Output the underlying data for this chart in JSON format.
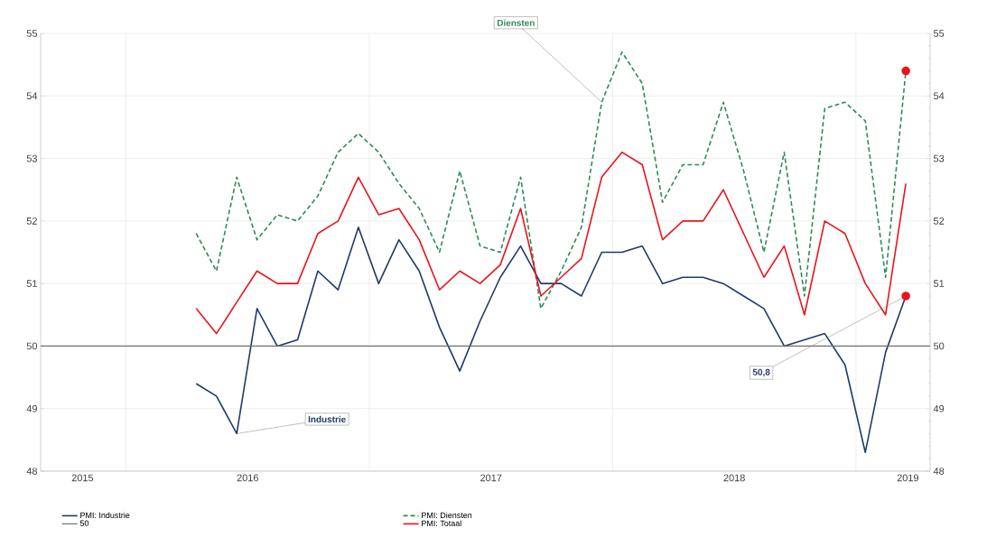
{
  "chart_data": {
    "type": "line",
    "x": [
      "2016-04-15",
      "2016-05-15",
      "2016-06-15",
      "2016-07-15",
      "2016-08-15",
      "2016-09-15",
      "2016-10-15",
      "2016-11-15",
      "2016-12-15",
      "2017-01-15",
      "2017-02-15",
      "2017-03-15",
      "2017-04-15",
      "2017-05-15",
      "2017-06-15",
      "2017-07-15",
      "2017-08-15",
      "2017-09-15",
      "2017-10-15",
      "2017-11-15",
      "2017-12-15",
      "2018-01-15",
      "2018-02-15",
      "2018-03-15",
      "2018-04-15",
      "2018-05-15",
      "2018-06-15",
      "2018-07-15",
      "2018-08-15",
      "2018-09-15",
      "2018-10-15",
      "2018-11-15",
      "2018-12-15",
      "2019-01-15",
      "2019-02-15",
      "2019-03-15"
    ],
    "series": [
      {
        "name": "PMI: Industrie",
        "color": "#1f3a68",
        "line_style": "solid",
        "values": [
          49.4,
          49.2,
          48.6,
          50.6,
          50.0,
          50.1,
          51.2,
          50.9,
          51.9,
          51.0,
          51.7,
          51.2,
          50.3,
          49.6,
          50.4,
          51.1,
          51.6,
          51.0,
          51.0,
          50.8,
          51.5,
          51.5,
          51.6,
          51.0,
          51.1,
          51.1,
          51.0,
          50.8,
          50.6,
          50.0,
          50.1,
          50.2,
          49.7,
          48.3,
          49.9,
          50.8
        ],
        "value_labels": [
          null,
          null,
          null,
          null,
          null,
          null,
          null,
          null,
          null,
          null,
          null,
          null,
          null,
          null,
          null,
          null,
          null,
          null,
          null,
          null,
          null,
          null,
          null,
          null,
          null,
          null,
          null,
          null,
          null,
          null,
          null,
          null,
          null,
          null,
          null,
          "50,8"
        ]
      },
      {
        "name": "PMI: Diensten",
        "color": "#2e8b57",
        "line_style": "dashed",
        "values": [
          51.8,
          51.2,
          52.7,
          51.7,
          52.1,
          52.0,
          52.4,
          53.1,
          53.4,
          53.1,
          52.6,
          52.2,
          51.5,
          52.8,
          51.6,
          51.5,
          52.7,
          50.6,
          51.2,
          51.9,
          53.9,
          54.7,
          54.2,
          52.3,
          52.9,
          52.9,
          53.9,
          52.8,
          51.5,
          53.1,
          50.8,
          53.8,
          53.9,
          53.6,
          51.1,
          54.4
        ]
      },
      {
        "name": "PMI: Totaal",
        "color": "#e8141c",
        "line_style": "solid",
        "values": [
          50.6,
          50.2,
          50.7,
          51.2,
          51.0,
          51.0,
          51.8,
          52.0,
          52.7,
          52.1,
          52.2,
          51.7,
          50.9,
          51.2,
          51.0,
          51.3,
          52.2,
          50.8,
          51.1,
          51.4,
          52.7,
          53.1,
          52.9,
          51.7,
          52.0,
          52.0,
          52.5,
          51.8,
          51.1,
          51.6,
          50.5,
          52.0,
          51.8,
          51.0,
          50.5,
          52.6
        ]
      },
      {
        "type": "scatter",
        "marker": "circle",
        "color": "#e8141c",
        "x": [
          "2019-03-15",
          "2019-03-15"
        ],
        "values": [
          54.4,
          50.8
        ]
      }
    ],
    "xlim": [
      "2015-08-25",
      "2019-04-21"
    ],
    "xticks": [
      {
        "value": "2015-10-27",
        "label": "2015"
      },
      {
        "value": "2016-01-01",
        "label": null
      },
      {
        "value": "2016-07-01",
        "label": "2016"
      },
      {
        "value": "2017-01-01",
        "label": null
      },
      {
        "value": "2017-07-01",
        "label": "2017"
      },
      {
        "value": "2018-01-01",
        "label": null
      },
      {
        "value": "2018-07-01",
        "label": "2018"
      },
      {
        "value": "2019-01-01",
        "label": null
      },
      {
        "value": "2019-03-18",
        "label": "2019"
      }
    ],
    "ylim": [
      48,
      55
    ],
    "yticks": [
      48,
      49,
      50,
      51,
      52,
      53,
      54,
      55
    ],
    "y2lim": [
      48,
      55
    ],
    "y2ticks": [
      48,
      49,
      50,
      51,
      52,
      53,
      54,
      55
    ],
    "ref_lines": [
      {
        "axis": "y",
        "value": 50,
        "label": "50",
        "color": "#707070"
      }
    ],
    "annotations": [
      {
        "text": "Diensten",
        "x": "2017-12-15",
        "y": 53.9
      },
      {
        "text": "Industrie",
        "x": "2016-06-15",
        "y": 48.6
      }
    ],
    "grid": true,
    "legend": "bottom",
    "marker": "none"
  }
}
